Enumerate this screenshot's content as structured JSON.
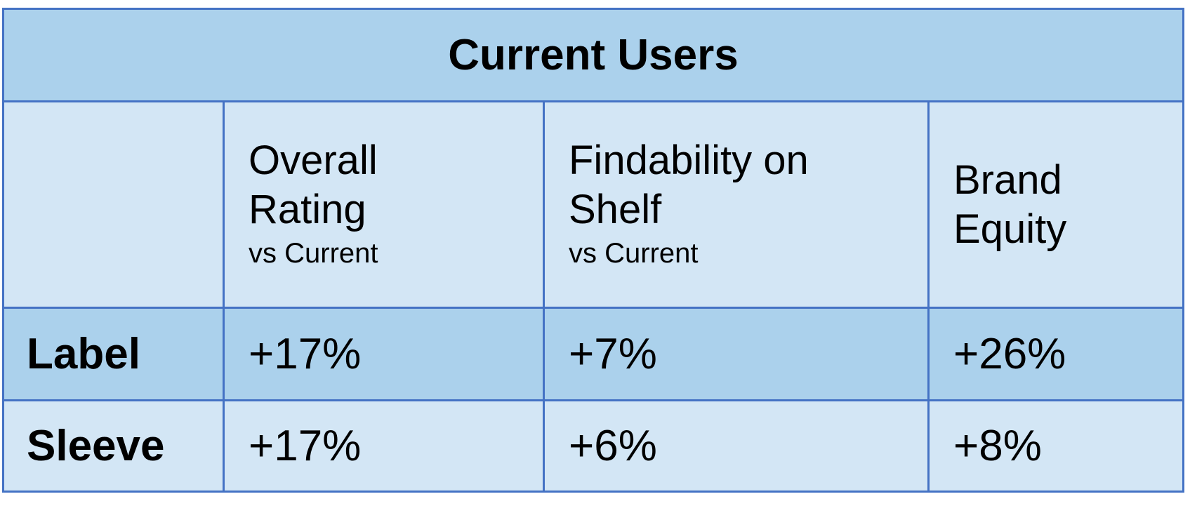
{
  "table": {
    "title": "Current Users",
    "columns": [
      {
        "lines": [
          "Overall",
          "Rating"
        ],
        "sub": "vs Current"
      },
      {
        "lines": [
          "Findability on",
          "Shelf"
        ],
        "sub": "vs Current"
      },
      {
        "lines": [
          "Brand",
          "Equity"
        ]
      }
    ],
    "rows": [
      {
        "label": "Label",
        "cells": [
          "+17%",
          "+7%",
          "+26%"
        ]
      },
      {
        "label": "Sleeve",
        "cells": [
          "+17%",
          "+6%",
          "+8%"
        ]
      }
    ]
  }
}
